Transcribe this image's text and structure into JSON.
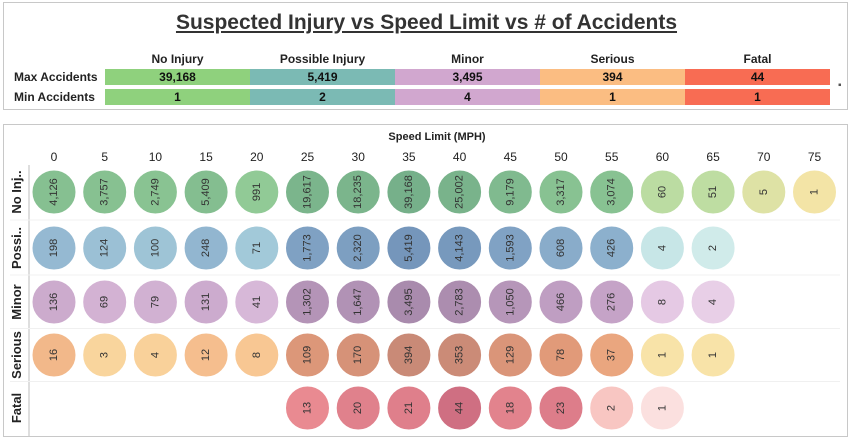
{
  "title": "Suspected Injury vs Speed Limit vs # of Accidents",
  "summary": {
    "columns": [
      "No Injury",
      "Possible Injury",
      "Minor",
      "Serious",
      "Fatal"
    ],
    "colors": [
      "#8fd17d",
      "#7bbab4",
      "#d1a7cf",
      "#fbbd82",
      "#f86c53"
    ],
    "rows": [
      {
        "label": "Max Accidents",
        "values": [
          "39,168",
          "5,419",
          "3,495",
          "394",
          "44"
        ]
      },
      {
        "label": "Min Accidents",
        "values": [
          "1",
          "2",
          "4",
          "1",
          "1"
        ]
      }
    ]
  },
  "chart_data": {
    "type": "bubble",
    "xlabel": "Speed Limit (MPH)",
    "x": [
      0,
      5,
      10,
      15,
      20,
      25,
      30,
      35,
      40,
      45,
      50,
      55,
      60,
      65,
      70,
      75
    ],
    "series": [
      {
        "name": "No Inj..",
        "values": [
          4126,
          3757,
          2749,
          5409,
          991,
          19617,
          18235,
          39168,
          25002,
          9179,
          3317,
          3074,
          60,
          51,
          5,
          1
        ]
      },
      {
        "name": "Possi..",
        "values": [
          198,
          124,
          100,
          248,
          71,
          1773,
          2320,
          5419,
          4143,
          1593,
          608,
          426,
          4,
          2,
          null,
          null
        ]
      },
      {
        "name": "Minor",
        "values": [
          136,
          69,
          79,
          131,
          41,
          1302,
          1647,
          3495,
          2783,
          1050,
          466,
          276,
          8,
          4,
          null,
          null
        ]
      },
      {
        "name": "Serious",
        "values": [
          16,
          3,
          4,
          12,
          8,
          109,
          170,
          394,
          353,
          129,
          78,
          37,
          1,
          1,
          null,
          null
        ]
      },
      {
        "name": "Fatal",
        "values": [
          null,
          null,
          null,
          null,
          null,
          13,
          20,
          21,
          44,
          18,
          23,
          2,
          1,
          null,
          null,
          null
        ]
      }
    ]
  }
}
